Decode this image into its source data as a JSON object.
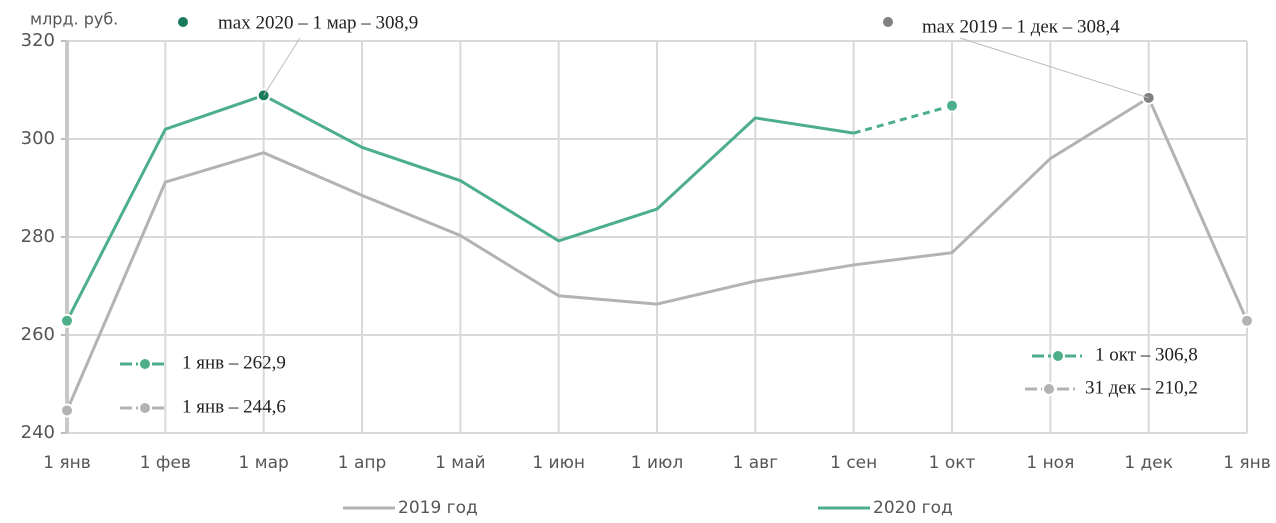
{
  "chart_data": {
    "type": "line",
    "unit_label": "млрд. руб.",
    "categories": [
      "1 янв",
      "1 фев",
      "1 мар",
      "1 апр",
      "1 май",
      "1 июн",
      "1 июл",
      "1 авг",
      "1 сен",
      "1 окт",
      "1 ноя",
      "1 дек",
      "1 янв"
    ],
    "series": [
      {
        "name": "2019 год",
        "color": "#b3b3b3",
        "max_color": "#808080",
        "values": [
          244.6,
          291.2,
          297.2,
          288.5,
          280.3,
          268.0,
          266.3,
          271.0,
          274.3,
          276.8,
          296.0,
          308.4,
          262.9
        ]
      },
      {
        "name": "2020 год",
        "color": "#4caf8a",
        "max_color": "#1a7a5e",
        "values": [
          262.9,
          302.0,
          308.9,
          298.3,
          291.5,
          279.2,
          285.7,
          304.3,
          301.2,
          306.8,
          null,
          null,
          null
        ]
      }
    ],
    "max_annotations": [
      "max 2019 – 1 дек – 308,4",
      "max 2020 – 1 мар – 308,9"
    ],
    "point_annotations": [
      {
        "text": "1 янв –  262,9",
        "series": 1
      },
      {
        "text": "1 янв – 244,6",
        "series": 0
      },
      {
        "text": "1 окт – 306,8",
        "series": 1
      },
      {
        "text": "31 дек – 210,2",
        "series": 0
      }
    ],
    "ylim": [
      240,
      320
    ],
    "yticks": [
      240,
      260,
      280,
      300,
      320
    ],
    "grid": true
  }
}
